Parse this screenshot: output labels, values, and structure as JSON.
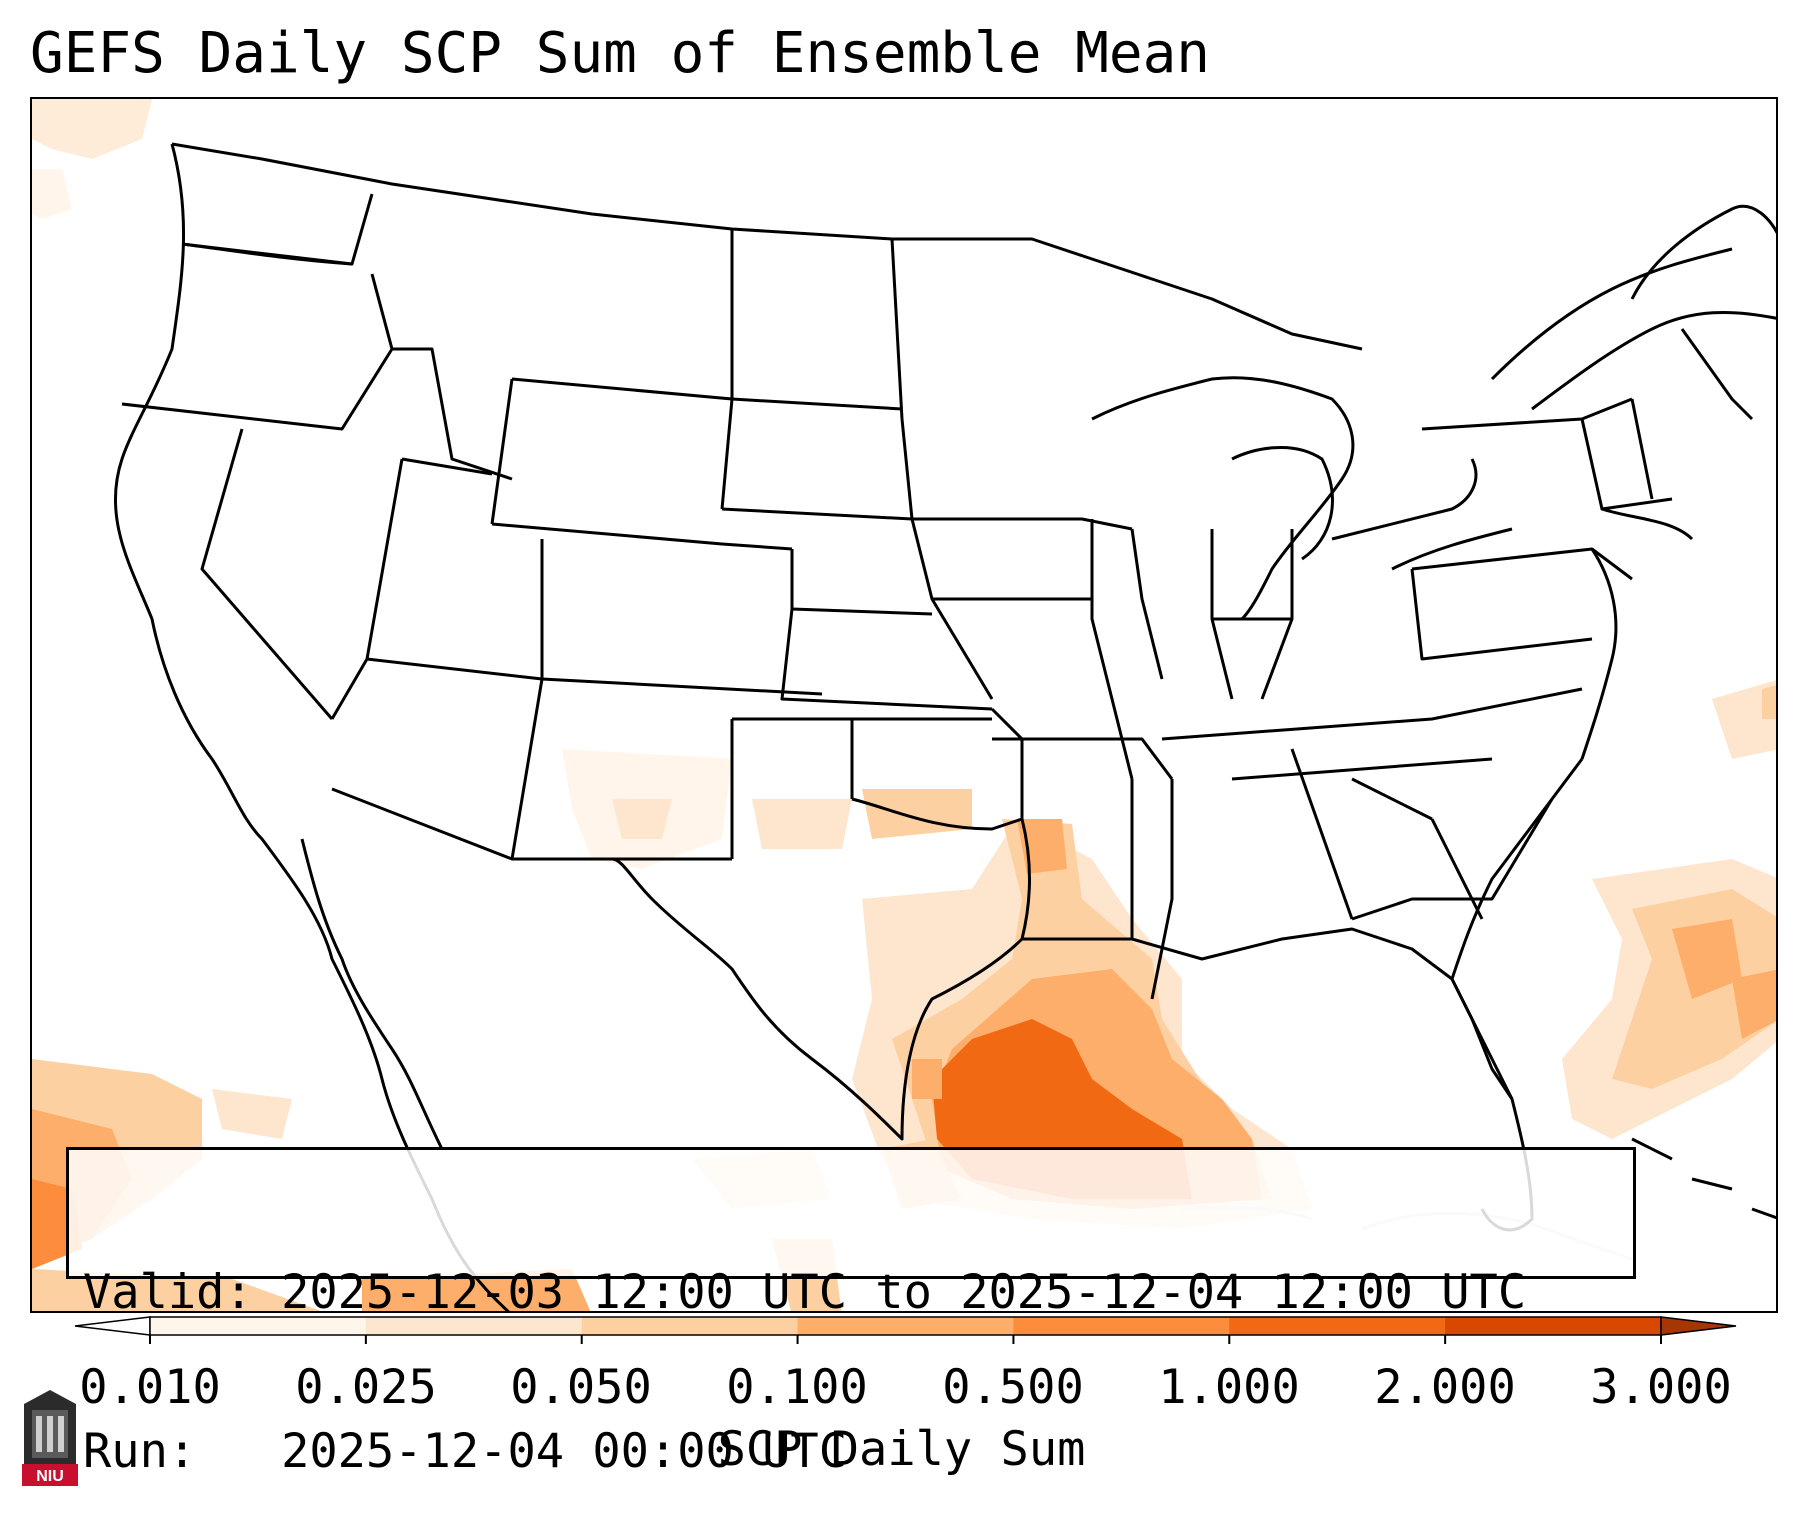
{
  "title": "GEFS Daily SCP Sum of Ensemble Mean",
  "info": {
    "valid_label": "Valid:",
    "valid_value": "2025-12-03 12:00 UTC to 2025-12-04 12:00 UTC",
    "run_label": "Run:",
    "run_value": "2025-12-04 00:00 UTC"
  },
  "colorbar": {
    "label": "SCP Daily Sum",
    "ticks": [
      "0.010",
      "0.025",
      "0.050",
      "0.100",
      "0.500",
      "1.000",
      "2.000",
      "3.000"
    ],
    "colors": [
      "#fff5eb",
      "#fee6ce",
      "#fdd0a2",
      "#fdae6b",
      "#fd8d3c",
      "#f16913",
      "#d94801"
    ],
    "under_color": "#ffffff",
    "over_color": "#a63603"
  },
  "logo": {
    "text": "NIU",
    "color": "#c8102e"
  },
  "colors": {
    "border": "#000000",
    "faint_border": "#d9d9d9"
  }
}
